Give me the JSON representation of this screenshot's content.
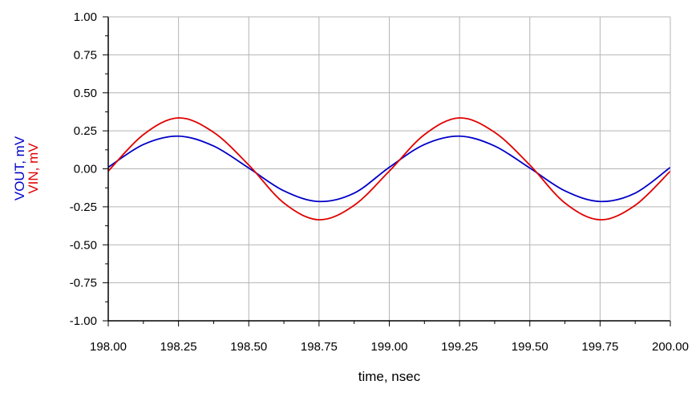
{
  "chart_data": {
    "type": "line",
    "title": "",
    "xlabel": "time, nsec",
    "ylabel_parts": [
      {
        "text": "VOUT, mV",
        "color": "#0000c8"
      },
      {
        "text": "VIN, mV",
        "color": "#e00000"
      }
    ],
    "xlim": [
      198.0,
      200.0
    ],
    "ylim": [
      -1.0,
      1.0
    ],
    "x_ticks": [
      198.0,
      198.25,
      198.5,
      198.75,
      199.0,
      199.25,
      199.5,
      199.75,
      200.0
    ],
    "x_tick_labels": [
      "198.00",
      "198.25",
      "198.50",
      "198.75",
      "199.00",
      "199.25",
      "199.50",
      "199.75",
      "200.00"
    ],
    "y_ticks": [
      1.0,
      0.75,
      0.5,
      0.25,
      0.0,
      -0.25,
      -0.5,
      -0.75,
      -1.0
    ],
    "y_tick_labels": [
      "1.00",
      "0.75",
      "0.50",
      "0.25",
      "0.00",
      "-0.25",
      "-0.50",
      "-0.75",
      "-1.00"
    ],
    "grid": true,
    "legend": "none",
    "series": [
      {
        "label": "VOUT, mV",
        "color": "#0000c8",
        "x": [
          198.0,
          198.125,
          198.25,
          198.375,
          198.5,
          198.625,
          198.75,
          198.875,
          199.0,
          199.125,
          199.25,
          199.375,
          199.5,
          199.625,
          199.75,
          199.875,
          200.0
        ],
        "y": [
          0.01,
          0.16,
          0.215,
          0.15,
          0.005,
          -0.145,
          -0.215,
          -0.16,
          0.01,
          0.16,
          0.215,
          0.15,
          0.005,
          -0.145,
          -0.215,
          -0.16,
          0.01
        ]
      },
      {
        "label": "VIN, mV",
        "color": "#e00000",
        "x": [
          198.0,
          198.125,
          198.25,
          198.375,
          198.5,
          198.625,
          198.75,
          198.875,
          199.0,
          199.125,
          199.25,
          199.375,
          199.5,
          199.625,
          199.75,
          199.875,
          200.0
        ],
        "y": [
          -0.015,
          0.225,
          0.335,
          0.24,
          0.025,
          -0.225,
          -0.335,
          -0.24,
          -0.015,
          0.225,
          0.335,
          0.24,
          0.025,
          -0.225,
          -0.335,
          -0.24,
          -0.015
        ]
      }
    ]
  }
}
